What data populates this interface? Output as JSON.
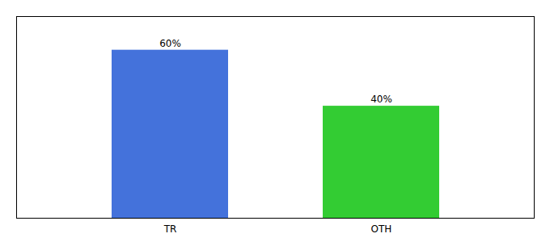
{
  "chart_data": {
    "type": "bar",
    "categories": [
      "TR",
      "OTH"
    ],
    "values": [
      60,
      40
    ],
    "colors": [
      "#4472db",
      "#33cc33"
    ],
    "ylim": [
      0,
      72
    ],
    "data_labels": true,
    "value_labels": [
      "60%",
      "40%"
    ],
    "tick_labels": "x"
  }
}
